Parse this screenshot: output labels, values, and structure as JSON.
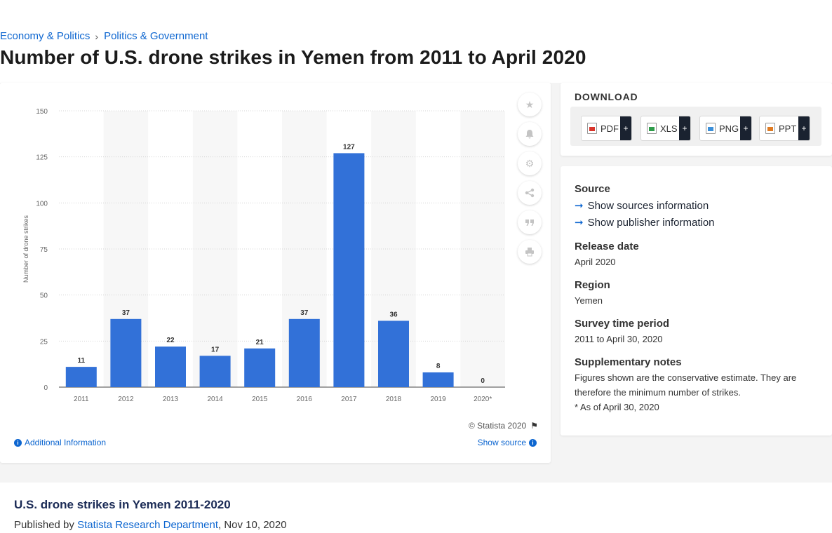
{
  "breadcrumb": {
    "items": [
      "Economy & Politics",
      "Politics & Government"
    ],
    "separator": "›"
  },
  "page_title": "Number of U.S. drone strikes in Yemen from 2011 to April 2020",
  "chart_data": {
    "type": "bar",
    "title": "",
    "categories": [
      "2011",
      "2012",
      "2013",
      "2014",
      "2015",
      "2016",
      "2017",
      "2018",
      "2019",
      "2020*"
    ],
    "values": [
      11,
      37,
      22,
      17,
      21,
      37,
      127,
      36,
      8,
      0
    ],
    "xlabel": "",
    "ylabel": "Number of drone strikes",
    "ylim": [
      0,
      150
    ],
    "yticks": [
      0,
      25,
      50,
      75,
      100,
      125,
      150
    ],
    "data_labels": true,
    "grid": true,
    "bar_color": "#3271d8"
  },
  "chart_footer": {
    "copyright": "© Statista 2020",
    "additional_info": "Additional Information",
    "show_source": "Show source"
  },
  "side_tools": [
    "star-icon",
    "bell-icon",
    "gear-icon",
    "share-icon",
    "quote-icon",
    "print-icon"
  ],
  "download": {
    "title": "DOWNLOAD",
    "buttons": [
      {
        "label": "PDF",
        "plus": "+"
      },
      {
        "label": "XLS",
        "plus": "+"
      },
      {
        "label": "PNG",
        "plus": "+"
      },
      {
        "label": "PPT",
        "plus": "+"
      }
    ]
  },
  "info": {
    "source_label": "Source",
    "show_sources": "Show sources information",
    "show_publisher": "Show publisher information",
    "release_label": "Release date",
    "release_value": "April 2020",
    "region_label": "Region",
    "region_value": "Yemen",
    "period_label": "Survey time period",
    "period_value": "2011 to April 30, 2020",
    "notes_label": "Supplementary notes",
    "notes_line1": "Figures shown are the conservative estimate. They are therefore the minimum number of strikes.",
    "notes_line2": "* As of April 30, 2020"
  },
  "bottom": {
    "title": "U.S. drone strikes in Yemen 2011-2020",
    "published_by": "Published by",
    "publisher": "Statista Research Department",
    "date": ", Nov 10, 2020"
  }
}
